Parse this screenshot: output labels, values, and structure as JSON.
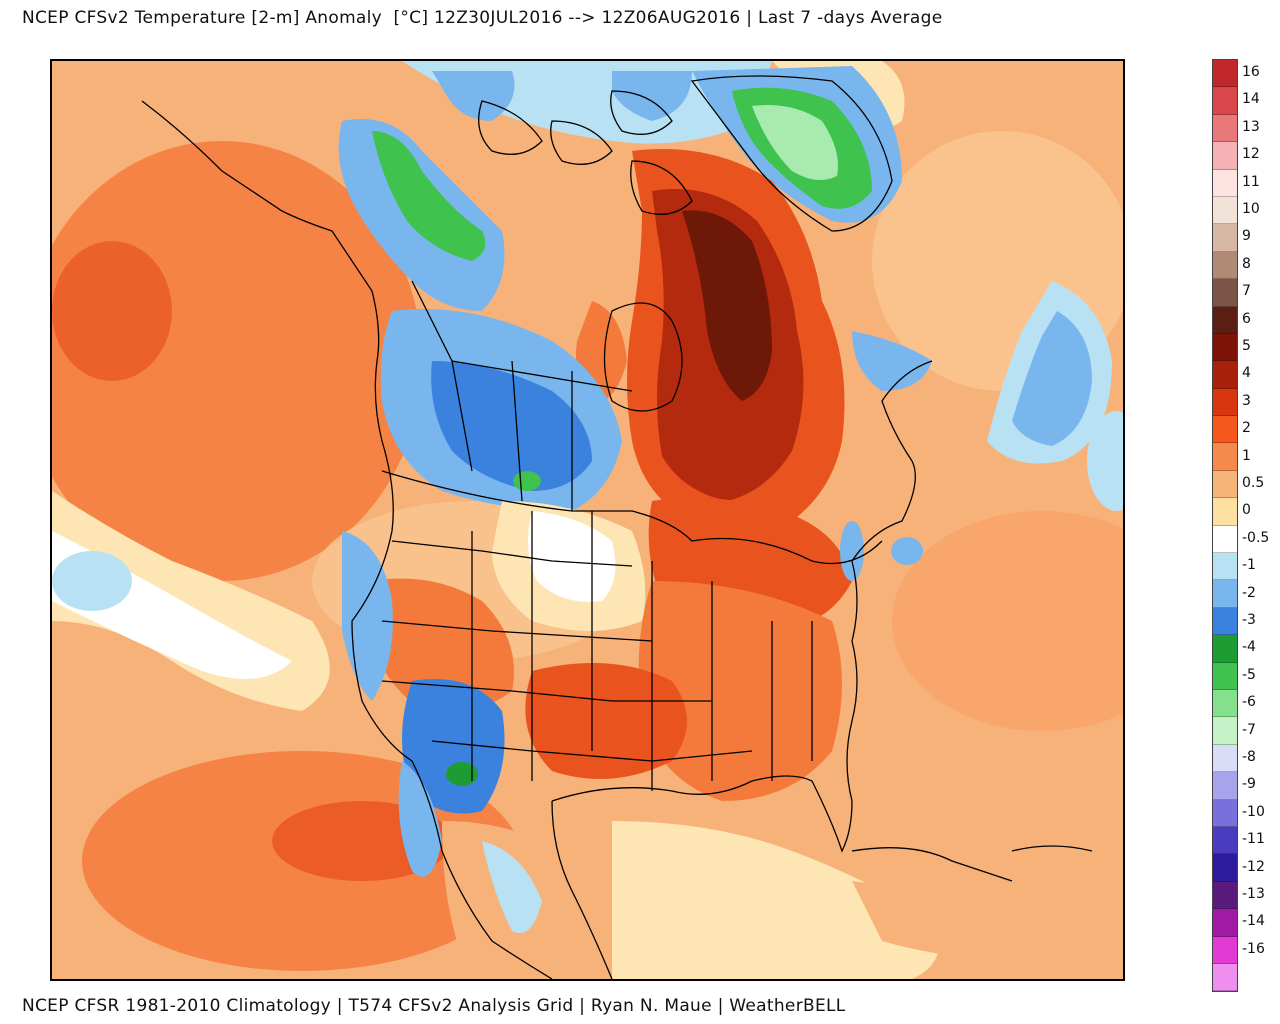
{
  "header": {
    "title": "NCEP CFSv2 Temperature [2-m] Anomaly  [°C] 12Z30JUL2016 --> 12Z06AUG2016 | Last 7 -days Average"
  },
  "footer": {
    "text": "NCEP CFSR 1981-2010 Climatology | T574 CFSv2 Analysis Grid | Ryan N. Maue | WeatherBELL"
  },
  "legend": {
    "items": [
      {
        "label": "16",
        "color": "#c0282a"
      },
      {
        "label": "14",
        "color": "#d9474a"
      },
      {
        "label": "13",
        "color": "#e8787a"
      },
      {
        "label": "12",
        "color": "#f5b2b4"
      },
      {
        "label": "11",
        "color": "#fde2e2"
      },
      {
        "label": "10",
        "color": "#f1e3d8"
      },
      {
        "label": "9",
        "color": "#d6b8a4"
      },
      {
        "label": "8",
        "color": "#b08a74"
      },
      {
        "label": "7",
        "color": "#7a5446"
      },
      {
        "label": "6",
        "color": "#5a1e14"
      },
      {
        "label": "5",
        "color": "#7e1408"
      },
      {
        "label": "4",
        "color": "#a8200a"
      },
      {
        "label": "3",
        "color": "#d8360e"
      },
      {
        "label": "2",
        "color": "#f4581c"
      },
      {
        "label": "1",
        "color": "#f58a4c"
      },
      {
        "label": "0.5",
        "color": "#f7b479"
      },
      {
        "label": "0",
        "color": "#fde0a0"
      },
      {
        "label": "-0.5",
        "color": "#ffffff"
      },
      {
        "label": "-1",
        "color": "#b8e2f4"
      },
      {
        "label": "-2",
        "color": "#7ab6ee"
      },
      {
        "label": "-3",
        "color": "#3a82de"
      },
      {
        "label": "-4",
        "color": "#1e9c34"
      },
      {
        "label": "-5",
        "color": "#3fc24e"
      },
      {
        "label": "-6",
        "color": "#84e08c"
      },
      {
        "label": "-7",
        "color": "#c6f2c8"
      },
      {
        "label": "-8",
        "color": "#dadcf8"
      },
      {
        "label": "-9",
        "color": "#a8a4ec"
      },
      {
        "label": "-10",
        "color": "#7a70dc"
      },
      {
        "label": "-11",
        "color": "#4a3cc0"
      },
      {
        "label": "-12",
        "color": "#2e1c9e"
      },
      {
        "label": "-13",
        "color": "#5a1c7c"
      },
      {
        "label": "-14",
        "color": "#a01aa4"
      },
      {
        "label": "-16",
        "color": "#e23ad4"
      }
    ],
    "last_color": "#f08ef0"
  },
  "map_colors": {
    "base_warm": "#f7b27a",
    "warm_strong": "#f47a3c",
    "warm_very": "#e8531e",
    "hot": "#b42a0e",
    "hot_core": "#6e1808",
    "neutral_light": "#fde6b4",
    "neutral_white": "#ffffff",
    "cool_light": "#b8e2f4",
    "cool": "#7ab6ee",
    "cool_strong": "#3a82de",
    "cold_green": "#3fc24e",
    "cold_green_light": "#a8eab0",
    "boundary": "#000000"
  }
}
